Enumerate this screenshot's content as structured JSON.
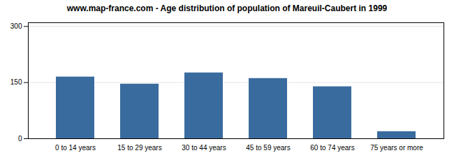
{
  "chart_data": {
    "type": "bar",
    "title": "www.map-france.com - Age distribution of population of Mareuil-Caubert in 1999",
    "categories": [
      "0 to 14 years",
      "15 to 29 years",
      "30 to 44 years",
      "45 to 59 years",
      "60 to 74 years",
      "75 years or more"
    ],
    "values": [
      165,
      146,
      176,
      161,
      139,
      19
    ],
    "color": "#3a6b9e",
    "ylim": [
      0,
      310
    ],
    "yticks": [
      0,
      150,
      300
    ],
    "grid": true
  }
}
